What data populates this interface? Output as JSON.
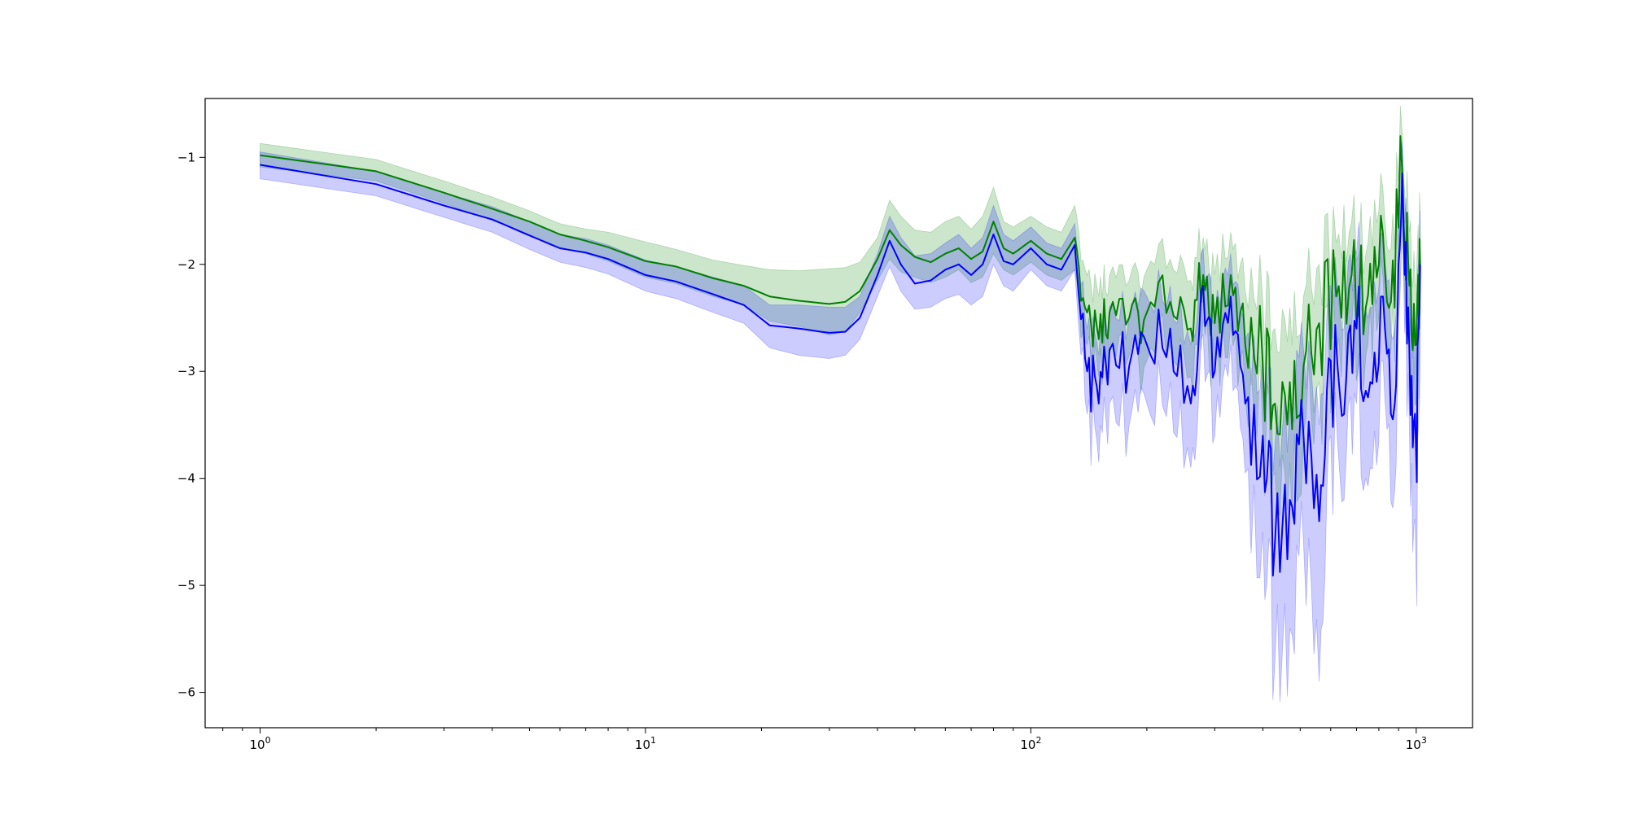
{
  "chart_data": {
    "type": "line",
    "title": "",
    "xlabel": "",
    "ylabel": "",
    "xscale": "log",
    "xlim": [
      0.72,
      1400
    ],
    "ylim": [
      -6.33,
      -0.45
    ],
    "grid": false,
    "legend": "none",
    "x_major_ticks": [
      1,
      10,
      100,
      1000
    ],
    "x_tick_labels": [
      {
        "base": "10",
        "exp": "0"
      },
      {
        "base": "10",
        "exp": "1"
      },
      {
        "base": "10",
        "exp": "2"
      },
      {
        "base": "10",
        "exp": "3"
      }
    ],
    "y_ticks": [
      -1,
      -2,
      -3,
      -4,
      -5,
      -6
    ],
    "y_tick_labels": [
      "−1",
      "−2",
      "−3",
      "−4",
      "−5",
      "−6"
    ],
    "series": [
      {
        "color": "#008000",
        "band_color": "#008000",
        "band_opacity": 0.2,
        "points": [
          [
            1,
            -0.98,
            -0.87,
            -1.09
          ],
          [
            2,
            -1.13,
            -1.02,
            -1.22
          ],
          [
            3,
            -1.33,
            -1.22,
            -1.43
          ],
          [
            4,
            -1.48,
            -1.37,
            -1.59
          ],
          [
            5,
            -1.6,
            -1.5,
            -1.72
          ],
          [
            6,
            -1.72,
            -1.62,
            -1.84
          ],
          [
            7,
            -1.78,
            -1.67,
            -1.9
          ],
          [
            8,
            -1.84,
            -1.7,
            -1.97
          ],
          [
            10,
            -1.97,
            -1.79,
            -2.12
          ],
          [
            12,
            -2.02,
            -1.86,
            -2.18
          ],
          [
            15,
            -2.13,
            -1.96,
            -2.3
          ],
          [
            18,
            -2.2,
            -2.01,
            -2.38
          ],
          [
            21,
            -2.3,
            -2.05,
            -2.53
          ],
          [
            25,
            -2.34,
            -2.06,
            -2.58
          ],
          [
            30,
            -2.37,
            -2.04,
            -2.66
          ],
          [
            33,
            -2.35,
            -2.03,
            -2.63
          ],
          [
            36,
            -2.25,
            -1.98,
            -2.45
          ],
          [
            40,
            -1.95,
            -1.75,
            -2.15
          ],
          [
            43,
            -1.68,
            -1.4,
            -1.95
          ],
          [
            46,
            -1.82,
            -1.55,
            -2.07
          ],
          [
            50,
            -1.93,
            -1.68,
            -2.12
          ],
          [
            55,
            -1.98,
            -1.7,
            -2.17
          ],
          [
            60,
            -1.9,
            -1.6,
            -2.12
          ],
          [
            65,
            -1.85,
            -1.55,
            -2.05
          ],
          [
            70,
            -1.95,
            -1.67,
            -2.17
          ],
          [
            75,
            -1.88,
            -1.55,
            -2.12
          ],
          [
            80,
            -1.6,
            -1.28,
            -1.9
          ],
          [
            85,
            -1.85,
            -1.6,
            -2.05
          ],
          [
            90,
            -1.9,
            -1.65,
            -2.1
          ],
          [
            100,
            -1.78,
            -1.55,
            -1.98
          ],
          [
            110,
            -1.9,
            -1.65,
            -2.1
          ],
          [
            120,
            -1.95,
            -1.7,
            -2.15
          ],
          [
            130,
            -1.75,
            -1.45,
            -2.05
          ],
          [
            140,
            -2.45,
            -2.1,
            -2.75
          ],
          [
            150,
            -2.7,
            -2.3,
            -3.05
          ],
          [
            160,
            -2.45,
            -2.1,
            -2.85
          ],
          [
            180,
            -2.5,
            -2.15,
            -2.85
          ],
          [
            200,
            -2.45,
            -2.05,
            -2.9
          ],
          [
            230,
            -2.35,
            -1.95,
            -2.75
          ],
          [
            260,
            -2.6,
            -2.15,
            -3.05
          ],
          [
            280,
            -2.1,
            -1.75,
            -2.5
          ],
          [
            300,
            -2.55,
            -2.1,
            -3.0
          ],
          [
            330,
            -2.1,
            -1.7,
            -2.55
          ],
          [
            360,
            -2.75,
            -2.25,
            -3.25
          ],
          [
            400,
            -2.95,
            -2.35,
            -3.55
          ],
          [
            430,
            -3.3,
            -2.6,
            -3.95
          ],
          [
            470,
            -3.1,
            -2.4,
            -3.85
          ],
          [
            510,
            -2.95,
            -2.3,
            -3.6
          ],
          [
            560,
            -2.55,
            -2.0,
            -3.1
          ],
          [
            620,
            -2.3,
            -1.8,
            -2.8
          ],
          [
            680,
            -2.1,
            -1.6,
            -2.6
          ],
          [
            740,
            -2.4,
            -1.9,
            -2.85
          ],
          [
            800,
            -2.0,
            -1.5,
            -2.5
          ],
          [
            860,
            -2.35,
            -1.85,
            -2.8
          ],
          [
            920,
            -1.15,
            -0.78,
            -1.5
          ],
          [
            960,
            -2.2,
            -1.7,
            -2.7
          ],
          [
            1000,
            -2.75,
            -2.2,
            -3.3
          ],
          [
            1024,
            -2.0,
            -1.5,
            -2.6
          ]
        ]
      },
      {
        "color": "#0000ff",
        "band_color": "#0000ff",
        "band_opacity": 0.2,
        "points": [
          [
            1,
            -1.07,
            -0.95,
            -1.2
          ],
          [
            2,
            -1.25,
            -1.13,
            -1.36
          ],
          [
            3,
            -1.45,
            -1.33,
            -1.56
          ],
          [
            4,
            -1.58,
            -1.46,
            -1.7
          ],
          [
            5,
            -1.73,
            -1.6,
            -1.86
          ],
          [
            6,
            -1.85,
            -1.72,
            -1.98
          ],
          [
            7,
            -1.89,
            -1.76,
            -2.03
          ],
          [
            8,
            -1.95,
            -1.82,
            -2.09
          ],
          [
            10,
            -2.1,
            -1.96,
            -2.25
          ],
          [
            12,
            -2.16,
            -2.02,
            -2.32
          ],
          [
            15,
            -2.28,
            -2.12,
            -2.45
          ],
          [
            18,
            -2.38,
            -2.2,
            -2.55
          ],
          [
            21,
            -2.57,
            -2.38,
            -2.78
          ],
          [
            25,
            -2.6,
            -2.38,
            -2.85
          ],
          [
            30,
            -2.64,
            -2.4,
            -2.88
          ],
          [
            33,
            -2.63,
            -2.4,
            -2.85
          ],
          [
            36,
            -2.5,
            -2.3,
            -2.7
          ],
          [
            40,
            -2.1,
            -1.9,
            -2.3
          ],
          [
            43,
            -1.78,
            -1.55,
            -2.02
          ],
          [
            46,
            -2.0,
            -1.75,
            -2.25
          ],
          [
            50,
            -2.18,
            -1.92,
            -2.42
          ],
          [
            55,
            -2.15,
            -1.9,
            -2.4
          ],
          [
            60,
            -2.05,
            -1.8,
            -2.32
          ],
          [
            65,
            -2.0,
            -1.72,
            -2.28
          ],
          [
            70,
            -2.1,
            -1.85,
            -2.38
          ],
          [
            75,
            -2.0,
            -1.75,
            -2.3
          ],
          [
            80,
            -1.72,
            -1.45,
            -2.0
          ],
          [
            85,
            -1.97,
            -1.72,
            -2.2
          ],
          [
            90,
            -2.0,
            -1.78,
            -2.25
          ],
          [
            100,
            -1.85,
            -1.65,
            -2.05
          ],
          [
            110,
            -2.0,
            -1.8,
            -2.2
          ],
          [
            120,
            -2.05,
            -1.85,
            -2.25
          ],
          [
            130,
            -1.82,
            -1.62,
            -2.05
          ],
          [
            140,
            -3.0,
            -2.6,
            -3.4
          ],
          [
            150,
            -3.3,
            -2.85,
            -3.85
          ],
          [
            160,
            -2.8,
            -2.4,
            -3.3
          ],
          [
            180,
            -2.95,
            -2.5,
            -3.5
          ],
          [
            200,
            -2.75,
            -2.3,
            -3.3
          ],
          [
            230,
            -2.6,
            -2.2,
            -3.1
          ],
          [
            260,
            -3.3,
            -2.75,
            -3.9
          ],
          [
            280,
            -2.2,
            -1.85,
            -2.65
          ],
          [
            300,
            -3.0,
            -2.5,
            -3.6
          ],
          [
            330,
            -2.3,
            -1.9,
            -2.75
          ],
          [
            360,
            -3.3,
            -2.7,
            -3.95
          ],
          [
            400,
            -3.6,
            -2.85,
            -4.5
          ],
          [
            430,
            -4.6,
            -3.7,
            -5.7
          ],
          [
            470,
            -4.2,
            -3.3,
            -5.4
          ],
          [
            510,
            -3.6,
            -2.8,
            -4.6
          ],
          [
            560,
            -4.4,
            -3.5,
            -5.9
          ],
          [
            600,
            -2.9,
            -2.2,
            -3.6
          ],
          [
            650,
            -3.4,
            -2.6,
            -4.2
          ],
          [
            700,
            -2.6,
            -1.9,
            -3.3
          ],
          [
            760,
            -3.1,
            -2.4,
            -3.9
          ],
          [
            820,
            -2.3,
            -1.7,
            -2.9
          ],
          [
            880,
            -3.3,
            -2.6,
            -4.1
          ],
          [
            920,
            -1.15,
            -0.85,
            -1.5
          ],
          [
            960,
            -2.8,
            -2.2,
            -3.5
          ],
          [
            1000,
            -3.8,
            -2.9,
            -4.9
          ],
          [
            1024,
            -2.0,
            -1.5,
            -2.8
          ]
        ]
      }
    ]
  }
}
